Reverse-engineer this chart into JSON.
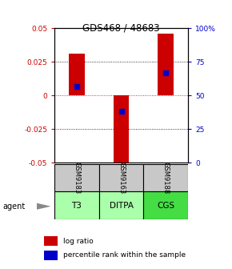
{
  "title": "GDS468 / 48683",
  "samples": [
    "GSM9183",
    "GSM9163",
    "GSM9188"
  ],
  "agents": [
    "T3",
    "DITPA",
    "CGS"
  ],
  "log_ratios": [
    0.031,
    -0.057,
    0.046
  ],
  "percentile_ranks": [
    0.57,
    0.38,
    0.67
  ],
  "bar_color": "#cc0000",
  "dot_color": "#0000cc",
  "ylim": [
    -0.05,
    0.05
  ],
  "yticks_left": [
    -0.05,
    -0.025,
    0,
    0.025,
    0.05
  ],
  "yticks_left_labels": [
    "-0.05",
    "-0.025",
    "0",
    "0.025",
    "0.05"
  ],
  "yticks_right": [
    0,
    25,
    50,
    75,
    100
  ],
  "yticks_right_labels": [
    "0",
    "25",
    "50",
    "75",
    "100%"
  ],
  "grid_yticks": [
    -0.025,
    0.025
  ],
  "zero_line_color": "#cc0000",
  "left_tick_color": "#cc0000",
  "right_tick_color": "#0000cc",
  "sample_bg": "#c8c8c8",
  "agent_bg_colors": [
    "#aaffaa",
    "#aaffaa",
    "#44dd44"
  ],
  "bar_width": 0.35,
  "dot_size": 25,
  "figsize": [
    2.9,
    3.36
  ],
  "dpi": 100
}
